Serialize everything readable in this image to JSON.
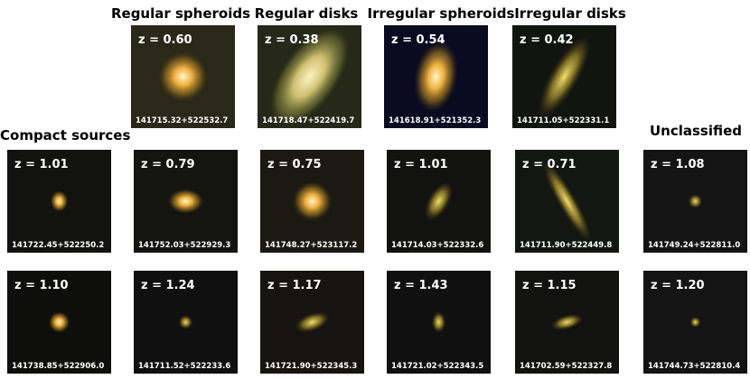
{
  "column_headers": [
    "Regular spheroids",
    "Regular disks",
    "Irregular spheroids",
    "Irregular disks"
  ],
  "side_labels": [
    "Compact sources",
    "Unclassified"
  ],
  "rows": [
    [
      {
        "z": "z = 0.60",
        "id": "141715.32+522532.7"
      },
      {
        "z": "z = 0.38",
        "id": "141718.47+522419.7"
      },
      {
        "z": "z = 0.54",
        "id": "141618.91+521352.3"
      },
      {
        "z": "z = 0.42",
        "id": "141711.05+522331.1"
      }
    ],
    [
      {
        "z": "z = 1.01",
        "id": "141722.45+522250.2"
      },
      {
        "z": "z = 0.79",
        "id": "141752.03+522929.3"
      },
      {
        "z": "z = 0.75",
        "id": "141748.27+523117.2"
      },
      {
        "z": "z = 1.01",
        "id": "141714.03+522332.6"
      },
      {
        "z": "z = 0.71",
        "id": "141711.90+522449.8"
      },
      {
        "z": "z = 1.08",
        "id": "141749.24+522811.0"
      }
    ],
    [
      {
        "z": "z = 1.10",
        "id": "141738.85+522906.0"
      },
      {
        "z": "z = 1.24",
        "id": "141711.52+522233.6"
      },
      {
        "z": "z = 1.17",
        "id": "141721.90+522345.3"
      },
      {
        "z": "z = 1.43",
        "id": "141721.02+522343.5"
      },
      {
        "z": "z = 1.15",
        "id": "141702.59+522327.8"
      },
      {
        "z": "z = 1.20",
        "id": "141744.73+522810.4"
      }
    ]
  ]
}
